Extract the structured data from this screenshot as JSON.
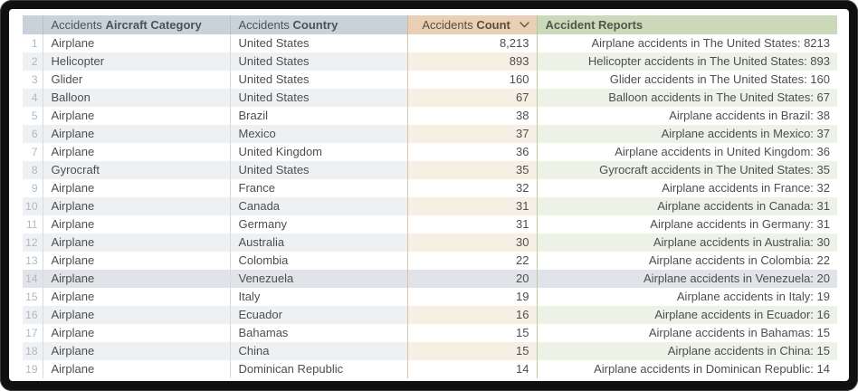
{
  "table": {
    "columns": [
      {
        "id": "index",
        "prefix": "",
        "label": ""
      },
      {
        "id": "aircraft-category",
        "prefix": "Accidents",
        "label": "Aircraft Category"
      },
      {
        "id": "country",
        "prefix": "Accidents",
        "label": "Country"
      },
      {
        "id": "count",
        "prefix": "Accidents",
        "label": "Count",
        "sort_icon": "chevron-down",
        "sort_direction": "descending"
      },
      {
        "id": "accident-reports",
        "prefix": "",
        "label": "Accident Reports"
      }
    ],
    "rows": [
      {
        "index": "1",
        "category": "Airplane",
        "country": "United States",
        "count": "8,213",
        "report": "Airplane accidents in The United States: 8213"
      },
      {
        "index": "2",
        "category": "Helicopter",
        "country": "United States",
        "count": "893",
        "report": "Helicopter accidents in The United States: 893"
      },
      {
        "index": "3",
        "category": "Glider",
        "country": "United States",
        "count": "160",
        "report": "Glider accidents in The United States: 160"
      },
      {
        "index": "4",
        "category": "Balloon",
        "country": "United States",
        "count": "67",
        "report": "Balloon accidents in The United States: 67"
      },
      {
        "index": "5",
        "category": "Airplane",
        "country": "Brazil",
        "count": "38",
        "report": "Airplane accidents in Brazil: 38"
      },
      {
        "index": "6",
        "category": "Airplane",
        "country": "Mexico",
        "count": "37",
        "report": "Airplane accidents in Mexico: 37"
      },
      {
        "index": "7",
        "category": "Airplane",
        "country": "United Kingdom",
        "count": "36",
        "report": "Airplane accidents in United Kingdom: 36"
      },
      {
        "index": "8",
        "category": "Gyrocraft",
        "country": "United States",
        "count": "35",
        "report": "Gyrocraft accidents in The United States: 35"
      },
      {
        "index": "9",
        "category": "Airplane",
        "country": "France",
        "count": "32",
        "report": "Airplane accidents in France: 32"
      },
      {
        "index": "10",
        "category": "Airplane",
        "country": "Canada",
        "count": "31",
        "report": "Airplane accidents in Canada: 31"
      },
      {
        "index": "11",
        "category": "Airplane",
        "country": "Germany",
        "count": "31",
        "report": "Airplane accidents in Germany: 31"
      },
      {
        "index": "12",
        "category": "Airplane",
        "country": "Australia",
        "count": "30",
        "report": "Airplane accidents in Australia: 30"
      },
      {
        "index": "13",
        "category": "Airplane",
        "country": "Colombia",
        "count": "22",
        "report": "Airplane accidents in Colombia: 22"
      },
      {
        "index": "14",
        "category": "Airplane",
        "country": "Venezuela",
        "count": "20",
        "report": "Airplane accidents in Venezuela: 20"
      },
      {
        "index": "15",
        "category": "Airplane",
        "country": "Italy",
        "count": "19",
        "report": "Airplane accidents in Italy: 19"
      },
      {
        "index": "16",
        "category": "Airplane",
        "country": "Ecuador",
        "count": "16",
        "report": "Airplane accidents in Ecuador: 16"
      },
      {
        "index": "17",
        "category": "Airplane",
        "country": "Bahamas",
        "count": "15",
        "report": "Airplane accidents in Bahamas: 15"
      },
      {
        "index": "18",
        "category": "Airplane",
        "country": "China",
        "count": "15",
        "report": "Airplane accidents in China: 15"
      },
      {
        "index": "19",
        "category": "Airplane",
        "country": "Dominican Republic",
        "count": "14",
        "report": "Airplane accidents in Dominican Republic: 14"
      }
    ],
    "hovered_row": 14
  },
  "colors": {
    "header-blue": "#c9d2da",
    "header-tan": "#e9cfb3",
    "header-green": "#ccd8ba",
    "header-border-blue": "#b7c0ca",
    "header-border-tan": "#d5ba96",
    "header-border-green": "#b4c49e",
    "header-text-blue": "#49525c",
    "header-text-tan": "#564f40",
    "header-text-green": "#4e584a",
    "stripe-blue": "#eef1f4",
    "stripe-tan": "#f6f0e4",
    "stripe-green": "#edf2e6",
    "hover-gray": "#e0e4e8",
    "border-gray": "#d8dbde",
    "border-tan": "#d9c3a4",
    "border-green": "#bccaa8",
    "cell-text": "#4e4e4e",
    "rownum-text": "#b1b8c1",
    "frame-black": "#101010"
  }
}
